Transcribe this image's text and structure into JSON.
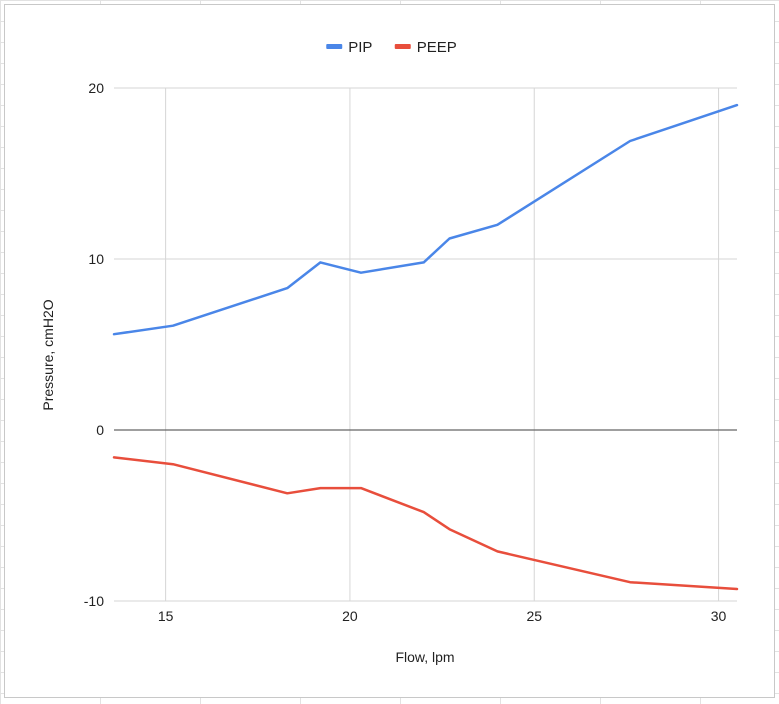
{
  "chart_data": {
    "type": "line",
    "title": "",
    "xlabel": "Flow, lpm",
    "ylabel": "Pressure, cmH2O",
    "xlim": [
      13.6,
      30.5
    ],
    "ylim": [
      -10,
      20
    ],
    "x_ticks": [
      15,
      20,
      25,
      30
    ],
    "y_ticks": [
      -10,
      0,
      10,
      20
    ],
    "grid": true,
    "legend_position": "top",
    "series": [
      {
        "name": "PIP",
        "color": "#4a86e8",
        "x": [
          13.6,
          15.2,
          18.3,
          19.2,
          20.3,
          22.0,
          22.7,
          24.0,
          27.6,
          30.5
        ],
        "y": [
          5.6,
          6.1,
          8.3,
          9.8,
          9.2,
          9.8,
          11.2,
          12.0,
          16.9,
          19.0
        ]
      },
      {
        "name": "PEEP",
        "color": "#e84e3c",
        "x": [
          13.6,
          15.2,
          18.3,
          19.2,
          20.3,
          22.0,
          22.7,
          24.0,
          27.6,
          30.5
        ],
        "y": [
          -1.6,
          -2.0,
          -3.7,
          -3.4,
          -3.4,
          -4.8,
          -5.8,
          -7.1,
          -8.9,
          -9.3
        ]
      }
    ]
  }
}
